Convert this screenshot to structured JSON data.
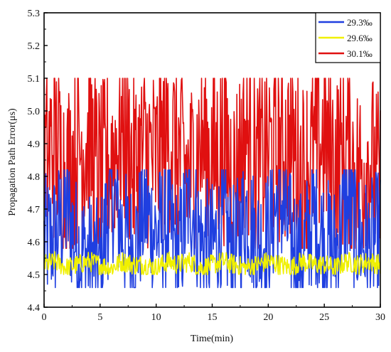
{
  "chart_data": {
    "type": "line",
    "xlabel": "Time(min)",
    "ylabel": "Propagation Path Error(μs)",
    "xlim": [
      0,
      30
    ],
    "ylim": [
      4.4,
      5.3
    ],
    "xticks": [
      "0",
      "5",
      "10",
      "15",
      "20",
      "25",
      "30"
    ],
    "yticks": [
      "4.4",
      "4.5",
      "4.6",
      "4.7",
      "4.8",
      "4.9",
      "5.0",
      "5.1",
      "5.2",
      "5.3"
    ],
    "grid": false,
    "legend_position": "top-right",
    "series": [
      {
        "name": "29.3‰",
        "color": "#1f3fe0",
        "x": [
          0,
          1,
          2,
          3,
          4,
          5,
          6,
          7,
          8,
          9,
          10,
          11,
          12,
          13,
          14,
          15,
          16,
          17,
          18,
          19,
          20,
          21,
          22,
          23,
          24,
          25,
          26,
          27,
          28,
          29,
          30
        ],
        "y": [
          4.6,
          4.62,
          4.7,
          4.58,
          4.55,
          4.52,
          4.76,
          4.63,
          4.57,
          4.7,
          4.62,
          4.66,
          4.55,
          4.75,
          4.6,
          4.58,
          4.65,
          4.56,
          4.7,
          4.59,
          4.62,
          4.74,
          4.61,
          4.55,
          4.68,
          4.6,
          4.57,
          4.72,
          4.62,
          4.58,
          4.63
        ],
        "y_min": 4.46,
        "y_max": 4.82
      },
      {
        "name": "29.6‰",
        "color": "#f0f000",
        "x": [
          0,
          1,
          2,
          3,
          4,
          5,
          6,
          7,
          8,
          9,
          10,
          11,
          12,
          13,
          14,
          15,
          16,
          17,
          18,
          19,
          20,
          21,
          22,
          23,
          24,
          25,
          26,
          27,
          28,
          29,
          30
        ],
        "y": [
          4.53,
          4.54,
          4.52,
          4.53,
          4.54,
          4.53,
          4.52,
          4.54,
          4.53,
          4.53,
          4.52,
          4.54,
          4.53,
          4.54,
          4.52,
          4.53,
          4.54,
          4.53,
          4.52,
          4.53,
          4.54,
          4.53,
          4.52,
          4.54,
          4.53,
          4.53,
          4.52,
          4.54,
          4.53,
          4.54,
          4.53
        ],
        "y_min": 4.5,
        "y_max": 4.57
      },
      {
        "name": "30.1‰",
        "color": "#e01010",
        "x": [
          0,
          1,
          2,
          3,
          4,
          5,
          6,
          7,
          8,
          9,
          10,
          11,
          12,
          13,
          14,
          15,
          16,
          17,
          18,
          19,
          20,
          21,
          22,
          23,
          24,
          25,
          26,
          27,
          28,
          29,
          30
        ],
        "y": [
          4.85,
          4.9,
          4.8,
          4.88,
          4.92,
          4.78,
          4.86,
          4.95,
          4.82,
          4.88,
          4.84,
          4.93,
          4.87,
          4.8,
          4.91,
          4.85,
          4.89,
          4.79,
          4.94,
          4.83,
          4.88,
          4.86,
          4.9,
          4.81,
          4.87,
          4.92,
          4.84,
          4.88,
          4.8,
          4.86,
          4.75
        ],
        "y_min": 4.58,
        "y_max": 5.1
      }
    ]
  }
}
